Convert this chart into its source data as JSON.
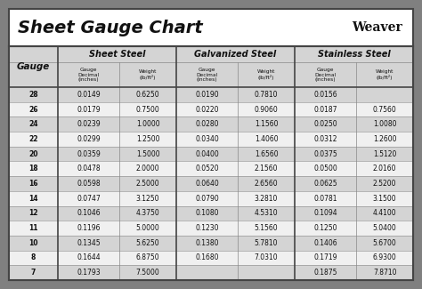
{
  "title": "Sheet Gauge Chart",
  "bg_outer": "#808080",
  "bg_white": "#ffffff",
  "bg_header": "#d4d4d4",
  "bg_row_dark": "#d4d4d4",
  "bg_row_light": "#f0f0f0",
  "text_dark": "#111111",
  "border_thick": "#444444",
  "border_thin": "#888888",
  "gauges": [
    28,
    26,
    24,
    22,
    20,
    18,
    16,
    14,
    12,
    11,
    10,
    8,
    7
  ],
  "sheet_steel_dec": [
    "0.0149",
    "0.0179",
    "0.0239",
    "0.0299",
    "0.0359",
    "0.0478",
    "0.0598",
    "0.0747",
    "0.1046",
    "0.1196",
    "0.1345",
    "0.1644",
    "0.1793"
  ],
  "sheet_steel_wt": [
    "0.6250",
    "0.7500",
    "1.0000",
    "1.2500",
    "1.5000",
    "2.0000",
    "2.5000",
    "3.1250",
    "4.3750",
    "5.0000",
    "5.6250",
    "6.8750",
    "7.5000"
  ],
  "galv_dec": [
    "0.0190",
    "0.0220",
    "0.0280",
    "0.0340",
    "0.0400",
    "0.0520",
    "0.0640",
    "0.0790",
    "0.1080",
    "0.1230",
    "0.1380",
    "0.1680",
    ""
  ],
  "galv_wt": [
    "0.7810",
    "0.9060",
    "1.1560",
    "1.4060",
    "1.6560",
    "2.1560",
    "2.6560",
    "3.2810",
    "4.5310",
    "5.1560",
    "5.7810",
    "7.0310",
    ""
  ],
  "stainless_dec": [
    "0.0156",
    "0.0187",
    "0.0250",
    "0.0312",
    "0.0375",
    "0.0500",
    "0.0625",
    "0.0781",
    "0.1094",
    "0.1250",
    "0.1406",
    "0.1719",
    "0.1875"
  ],
  "stainless_wt": [
    "",
    "0.7560",
    "1.0080",
    "1.2600",
    "1.5120",
    "2.0160",
    "2.5200",
    "3.1500",
    "4.4100",
    "5.0400",
    "5.6700",
    "6.9300",
    "7.8710"
  ],
  "group_headers": [
    "Sheet Steel",
    "Galvanized Steel",
    "Stainless Steel"
  ],
  "sub_header_dec": "Gauge\nDecimal\n(inches)",
  "sub_header_wt": "Weight\n(lb/ft²)",
  "gauge_label": "Gauge",
  "weaver_text": "Weaver",
  "figsize": [
    4.74,
    3.25
  ],
  "dpi": 100
}
